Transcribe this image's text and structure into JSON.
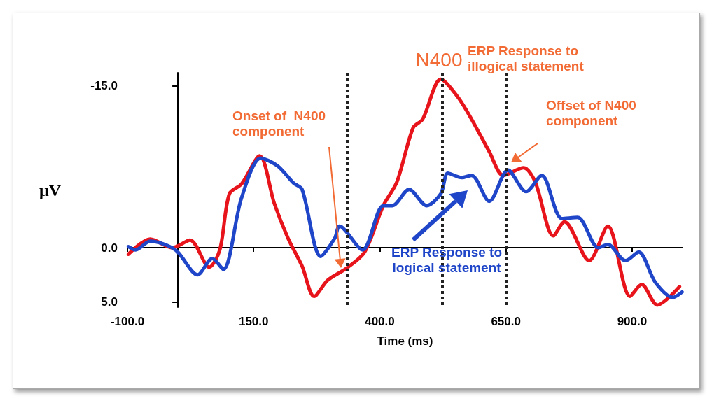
{
  "chart_data": {
    "type": "line",
    "xlabel": "Time (ms)",
    "ylabel": "μV",
    "xlim": [
      -100,
      1000
    ],
    "ylim": [
      5.5,
      -16.2
    ],
    "xticks": [
      {
        "value": -100,
        "label": "-100.0"
      },
      {
        "value": 150,
        "label": "150.0"
      },
      {
        "value": 400,
        "label": "400.0"
      },
      {
        "value": 650,
        "label": "650.0"
      },
      {
        "value": 900,
        "label": "900.0"
      }
    ],
    "yticks": [
      {
        "value": -15,
        "label": "-15.0"
      },
      {
        "value": 0,
        "label": "0.0"
      },
      {
        "value": 5,
        "label": "5.0"
      }
    ],
    "marker": "none",
    "line_style": "solid",
    "series": [
      {
        "color": "#e8141b",
        "x": [
          -98,
          -55,
          -11,
          24,
          62,
          83,
          102,
          126,
          162,
          191,
          218,
          246,
          270,
          297,
          334,
          370,
          407,
          434,
          466,
          485,
          521,
          554,
          582,
          617,
          645,
          685,
          708,
          744,
          766,
          815,
          852,
          896,
          919,
          950,
          994
        ],
        "values": [
          0.6,
          -0.8,
          0,
          -0.7,
          1.8,
          0.2,
          -5.0,
          -5.9,
          -8.5,
          -4.1,
          -0.9,
          1.7,
          4.5,
          3.0,
          1.9,
          0.4,
          -3.9,
          -6.1,
          -11.1,
          -11.9,
          -15.6,
          -14.0,
          -11.9,
          -8.9,
          -6.7,
          -7.4,
          -6.1,
          -1.1,
          -2.4,
          1.2,
          -2.0,
          4.5,
          3.4,
          5.3,
          3.6
        ]
      },
      {
        "color": "#1f45c8",
        "x": [
          -98,
          -84,
          -55,
          -5,
          39,
          68,
          90,
          126,
          164,
          197,
          229,
          246,
          283,
          311,
          320,
          366,
          407,
          425,
          458,
          493,
          521,
          535,
          562,
          582,
          617,
          654,
          690,
          721,
          761,
          792,
          833,
          852,
          887,
          913,
          946,
          981,
          999
        ],
        "values": [
          -0.1,
          0.2,
          -0.6,
          0.2,
          2.5,
          1.0,
          2.0,
          -4.6,
          -8.3,
          -7.6,
          -6.0,
          -5.4,
          0.8,
          -0.9,
          -2.0,
          0.2,
          -3.9,
          -3.9,
          -5.4,
          -3.9,
          -5.0,
          -6.9,
          -6.5,
          -6.7,
          -4.3,
          -7.2,
          -5.2,
          -6.7,
          -2.7,
          -2.8,
          0,
          -0.3,
          1.2,
          0.4,
          3.2,
          4.6,
          4.1
        ]
      }
    ],
    "ref_lines": [
      {
        "axis": "x",
        "value": 335,
        "color": "#222222",
        "line_style": "dotted"
      },
      {
        "axis": "x",
        "value": 524,
        "color": "#222222",
        "line_style": "dotted"
      },
      {
        "axis": "x",
        "value": 650,
        "color": "#222222",
        "line_style": "dotted"
      }
    ],
    "annotations": [
      "Onset of  N400 component",
      "N400",
      "ERP Response to illogical statement",
      "Offset of N400 component",
      "ERP Response to logical statement"
    ]
  }
}
